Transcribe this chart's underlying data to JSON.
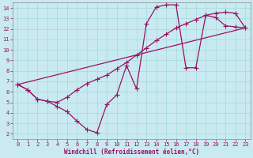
{
  "xlabel": "Windchill (Refroidissement éolien,°C)",
  "bg_color": "#c8eaf0",
  "grid_color": "#aadddd",
  "line_color": "#991166",
  "xlim": [
    -0.5,
    23.5
  ],
  "ylim": [
    1.5,
    14.5
  ],
  "xticks": [
    0,
    1,
    2,
    3,
    4,
    5,
    6,
    7,
    8,
    9,
    10,
    11,
    12,
    13,
    14,
    15,
    16,
    17,
    18,
    19,
    20,
    21,
    22,
    23
  ],
  "yticks": [
    2,
    3,
    4,
    5,
    6,
    7,
    8,
    9,
    10,
    11,
    12,
    13,
    14
  ],
  "line1_x": [
    0,
    1,
    2,
    3,
    4,
    5,
    6,
    7,
    8,
    9,
    10,
    11,
    12,
    13,
    14,
    15,
    16,
    17,
    18,
    19,
    20,
    21,
    22,
    23
  ],
  "line1_y": [
    6.7,
    6.2,
    5.3,
    5.1,
    4.6,
    4.1,
    3.2,
    2.4,
    2.1,
    4.8,
    5.7,
    8.5,
    6.3,
    12.5,
    14.1,
    14.3,
    14.3,
    8.3,
    8.3,
    13.3,
    13.1,
    12.3,
    12.2,
    12.1
  ],
  "line2_x": [
    0,
    1,
    2,
    3,
    4,
    5,
    6,
    7,
    8,
    9,
    10,
    11,
    12,
    13,
    14,
    15,
    16,
    17,
    18,
    19,
    20,
    21,
    22,
    23
  ],
  "line2_y": [
    6.7,
    6.2,
    5.3,
    5.1,
    5.0,
    5.5,
    6.2,
    6.8,
    7.2,
    7.6,
    8.2,
    8.8,
    9.5,
    10.2,
    10.9,
    11.5,
    12.1,
    12.5,
    12.9,
    13.3,
    13.5,
    13.6,
    13.5,
    12.1
  ],
  "line3_x": [
    0,
    23
  ],
  "line3_y": [
    6.7,
    12.1
  ],
  "marker": "+",
  "marker_size": 4,
  "lw": 0.9,
  "xlabel_fontsize": 5.5,
  "tick_fontsize": 5.0,
  "tick_color": "#991166",
  "axis_color": "#991166",
  "spine_color": "#888888"
}
